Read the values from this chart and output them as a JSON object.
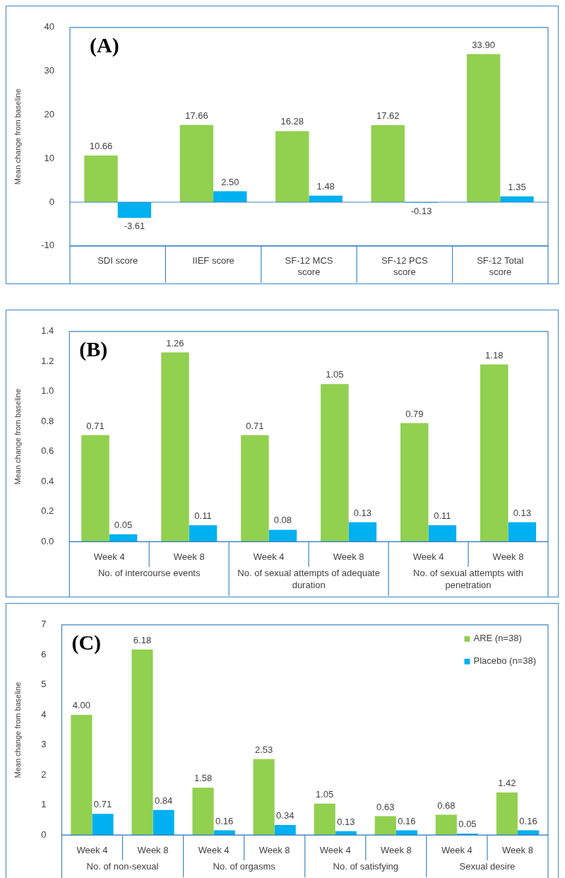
{
  "chart_data": [
    {
      "type": "bar",
      "ylabel": "Mean change from baseline",
      "annotations": [
        "(A)"
      ],
      "categories": [
        "SDI score",
        "IIEF score",
        "SF-12 MCS score",
        "SF-12 PCS score",
        "SF-12 Total score"
      ],
      "series": [
        {
          "color": "#92d050",
          "values": [
            10.66,
            17.66,
            16.28,
            17.62,
            33.9
          ],
          "value_labels": [
            "10.66",
            "17.66",
            "16.28",
            "17.62",
            "33.90"
          ]
        },
        {
          "color": "#00b0f0",
          "values": [
            -3.61,
            2.5,
            1.48,
            -0.13,
            1.35
          ],
          "value_labels": [
            "-3.61",
            "2.50",
            "1.48",
            "-0.13",
            "1.35"
          ]
        }
      ],
      "ylim": [
        -10,
        40
      ],
      "yticks": [
        -10,
        0,
        10,
        20,
        30,
        40
      ],
      "grid": false,
      "legend": false,
      "ref_lines": [
        {
          "axis": "y",
          "value": 0,
          "color": "#3d86c0"
        }
      ]
    },
    {
      "type": "bar",
      "ylabel": "Mean change from baseline",
      "annotations": [
        "(B)",
        "No. of intercourse events",
        "No. of sexual attempts of adequate duration",
        "No. of sexual attempts with penetration"
      ],
      "categories": [
        "Week 4",
        "Week 8",
        "Week 4",
        "Week 8",
        "Week 4",
        "Week 8"
      ],
      "series": [
        {
          "color": "#92d050",
          "values": [
            0.71,
            1.26,
            0.71,
            1.05,
            0.79,
            1.18
          ],
          "value_labels": [
            "0.71",
            "1.26",
            "0.71",
            "1.05",
            "0.79",
            "1.18"
          ]
        },
        {
          "color": "#00b0f0",
          "values": [
            0.05,
            0.11,
            0.08,
            0.13,
            0.11,
            0.13
          ],
          "value_labels": [
            "0.05",
            "0.11",
            "0.08",
            "0.13",
            "0.11",
            "0.13"
          ]
        }
      ],
      "ylim": [
        0,
        1.4
      ],
      "yticks": [
        {
          "value": 0,
          "label": "0.0"
        },
        {
          "value": 0.2,
          "label": "0.2"
        },
        {
          "value": 0.4,
          "label": "0.4"
        },
        {
          "value": 0.6,
          "label": "0.6"
        },
        {
          "value": 0.8,
          "label": "0.8"
        },
        {
          "value": 1,
          "label": "1.0"
        },
        {
          "value": 1.2,
          "label": "1.2"
        },
        {
          "value": 1.4,
          "label": "1.4"
        }
      ],
      "grid": false,
      "legend": false
    },
    {
      "type": "bar",
      "ylabel": "Mean change from baseline",
      "annotations": [
        "(C)",
        "No. of non-sexual",
        "No. of orgasms",
        "No. of satisfying",
        "Sexual desire"
      ],
      "categories": [
        "Week 4",
        "Week 8",
        "Week 4",
        "Week 8",
        "Week 4",
        "Week 8",
        "Week 4",
        "Week 8"
      ],
      "series": [
        {
          "name": "ARE (n=38)",
          "color": "#92d050",
          "values": [
            4.0,
            6.18,
            1.58,
            2.53,
            1.05,
            0.63,
            0.68,
            1.42
          ],
          "value_labels": [
            "4.00",
            "6.18",
            "1.58",
            "2.53",
            "1.05",
            "0.63",
            "0.68",
            "1.42"
          ]
        },
        {
          "name": "Placebo (n=38)",
          "color": "#00b0f0",
          "values": [
            0.71,
            0.84,
            0.16,
            0.34,
            0.13,
            0.16,
            0.05,
            0.16
          ],
          "value_labels": [
            "0.71",
            "0.84",
            "0.16",
            "0.34",
            "0.13",
            "0.16",
            "0.05",
            "0.16"
          ]
        }
      ],
      "ylim": [
        0,
        7
      ],
      "yticks": [
        0,
        1,
        2,
        3,
        4,
        5,
        6,
        7
      ],
      "grid": false,
      "legend": "top right"
    }
  ]
}
